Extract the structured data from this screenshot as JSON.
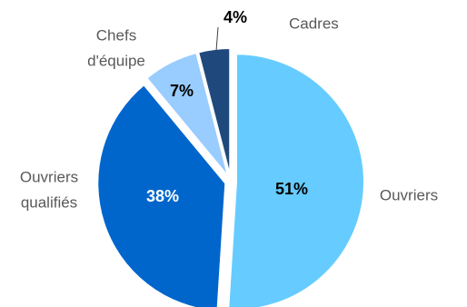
{
  "chart_data": {
    "type": "pie",
    "title": "",
    "slices": [
      {
        "category_lines": [
          "Ouvriers"
        ],
        "value": 51,
        "label": "51%",
        "color": "#66CCFF",
        "label_color": "#000000"
      },
      {
        "category_lines": [
          "Ouvriers",
          "qualifiés"
        ],
        "value": 38,
        "label": "38%",
        "color": "#0066CC",
        "label_color": "#ffffff"
      },
      {
        "category_lines": [
          "Chefs",
          "d'équipe"
        ],
        "value": 7,
        "label": "7%",
        "color": "#99CCFF",
        "label_color": "#000000"
      },
      {
        "category_lines": [
          "Cadres"
        ],
        "value": 4,
        "label": "4%",
        "color": "#1F497D",
        "label_color": "#000000"
      }
    ],
    "legend": "none",
    "start_angle": "12 o'clock",
    "direction": "clockwise"
  }
}
